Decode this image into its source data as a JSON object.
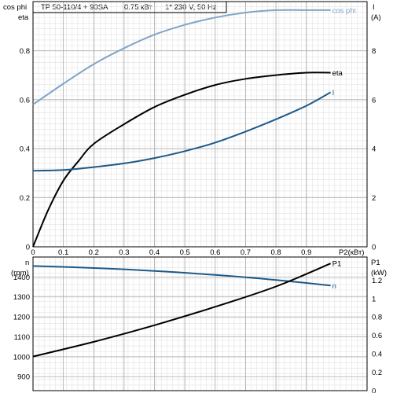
{
  "header": {
    "title": "TP 50-110/4 + 90SA",
    "power": "0.75 кВт",
    "supply": "1* 230 V, 50 Hz"
  },
  "chart_data": [
    {
      "type": "line",
      "panel": "top",
      "left_axis": {
        "label_top": "cos phi",
        "label_second": "eta",
        "range": [
          0,
          1.0
        ],
        "ticks": [
          0,
          0.2,
          0.4,
          0.6,
          0.8
        ]
      },
      "right_axis": {
        "label_top": "I",
        "label_second": "(A)",
        "range": [
          0,
          10
        ],
        "ticks": [
          0,
          2,
          4,
          6,
          8
        ]
      },
      "x_axis": {
        "label": "P2(кВт)",
        "range": [
          0,
          1.1
        ],
        "ticks": [
          0,
          0.1,
          0.2,
          0.3,
          0.4,
          0.5,
          0.6,
          0.7,
          0.8,
          0.9
        ]
      },
      "grid": true,
      "series": [
        {
          "name": "cos phi",
          "axis": "left",
          "color": "#7fa5c7",
          "x": [
            0,
            0.1,
            0.2,
            0.3,
            0.4,
            0.5,
            0.6,
            0.7,
            0.8,
            0.9,
            0.98
          ],
          "y": [
            0.58,
            0.665,
            0.745,
            0.81,
            0.865,
            0.905,
            0.935,
            0.955,
            0.965,
            0.965,
            0.965
          ]
        },
        {
          "name": "eta",
          "axis": "left",
          "color": "#000000",
          "x": [
            0,
            0.05,
            0.1,
            0.15,
            0.2,
            0.3,
            0.4,
            0.5,
            0.6,
            0.7,
            0.8,
            0.9,
            0.98
          ],
          "y": [
            0,
            0.15,
            0.27,
            0.35,
            0.42,
            0.5,
            0.57,
            0.62,
            0.66,
            0.685,
            0.7,
            0.71,
            0.71
          ]
        },
        {
          "name": "I",
          "axis": "right",
          "color": "#1d5a8a",
          "x": [
            0,
            0.1,
            0.2,
            0.3,
            0.4,
            0.5,
            0.6,
            0.7,
            0.8,
            0.9,
            0.98
          ],
          "y": [
            3.1,
            3.13,
            3.25,
            3.4,
            3.62,
            3.9,
            4.25,
            4.7,
            5.2,
            5.75,
            6.3
          ]
        }
      ]
    },
    {
      "type": "line",
      "panel": "bottom",
      "left_axis": {
        "label_top": "n",
        "label_second": "(rpm)",
        "range": [
          830,
          1500
        ],
        "ticks": [
          900,
          1000,
          1100,
          1200,
          1300,
          1400
        ]
      },
      "right_axis": {
        "label_top": "P1",
        "label_second": "(kW)",
        "range": [
          0,
          1.45
        ],
        "ticks": [
          0,
          0.2,
          0.4,
          0.6,
          0.8,
          1.0,
          1.2
        ]
      },
      "x_axis": {
        "range": [
          0,
          1.1
        ]
      },
      "grid": true,
      "series": [
        {
          "name": "n",
          "axis": "left",
          "color": "#1d5a8a",
          "x": [
            0,
            0.2,
            0.4,
            0.6,
            0.8,
            0.98
          ],
          "y": [
            1455,
            1445,
            1430,
            1410,
            1385,
            1357
          ]
        },
        {
          "name": "P1",
          "axis": "right",
          "color": "#000000",
          "x": [
            0,
            0.2,
            0.4,
            0.6,
            0.8,
            0.98
          ],
          "y": [
            0.37,
            0.53,
            0.71,
            0.91,
            1.13,
            1.38
          ]
        }
      ]
    }
  ]
}
